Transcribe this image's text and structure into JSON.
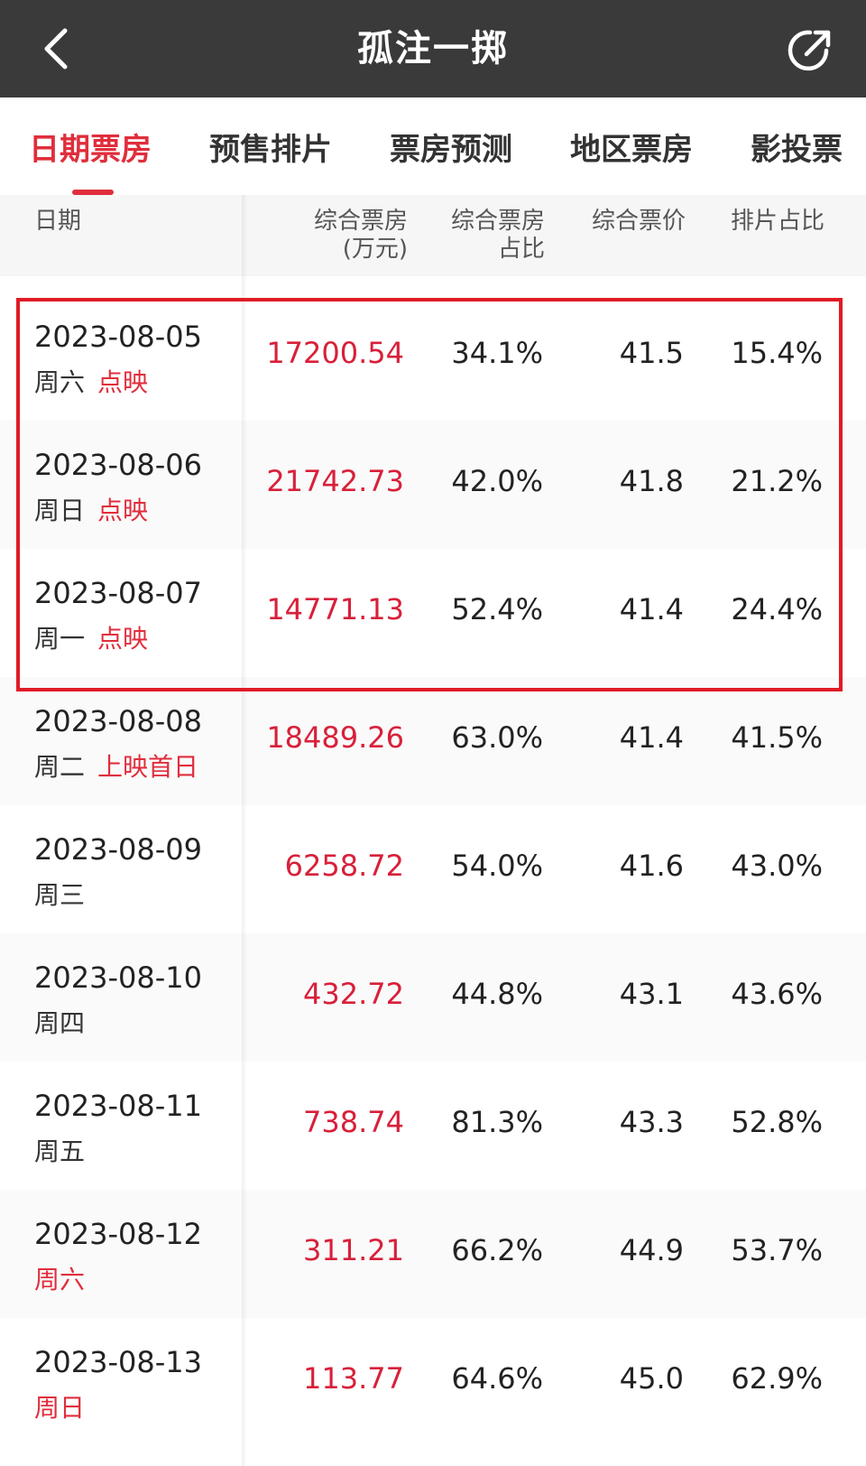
{
  "header": {
    "title": "孤注一掷"
  },
  "tabs": [
    "日期票房",
    "预售排片",
    "票房预测",
    "地区票房",
    "影投票"
  ],
  "columns": {
    "date": "日期",
    "box_office": [
      "综合票房",
      "(万元)"
    ],
    "share": [
      "综合票房",
      "占比"
    ],
    "price": "综合票价",
    "schedule": "排片占比"
  },
  "rows": [
    {
      "date": "2023-08-05",
      "weekday": "周六",
      "weekday_red": false,
      "tag": "点映",
      "box_office": "17200.54",
      "share": "34.1%",
      "price": "41.5",
      "schedule": "15.4%"
    },
    {
      "date": "2023-08-06",
      "weekday": "周日",
      "weekday_red": false,
      "tag": "点映",
      "box_office": "21742.73",
      "share": "42.0%",
      "price": "41.8",
      "schedule": "21.2%"
    },
    {
      "date": "2023-08-07",
      "weekday": "周一",
      "weekday_red": false,
      "tag": "点映",
      "box_office": "14771.13",
      "share": "52.4%",
      "price": "41.4",
      "schedule": "24.4%"
    },
    {
      "date": "2023-08-08",
      "weekday": "周二",
      "weekday_red": false,
      "tag": "上映首日",
      "box_office": "18489.26",
      "share": "63.0%",
      "price": "41.4",
      "schedule": "41.5%"
    },
    {
      "date": "2023-08-09",
      "weekday": "周三",
      "weekday_red": false,
      "tag": "",
      "box_office": "6258.72",
      "share": "54.0%",
      "price": "41.6",
      "schedule": "43.0%"
    },
    {
      "date": "2023-08-10",
      "weekday": "周四",
      "weekday_red": false,
      "tag": "",
      "box_office": "432.72",
      "share": "44.8%",
      "price": "43.1",
      "schedule": "43.6%"
    },
    {
      "date": "2023-08-11",
      "weekday": "周五",
      "weekday_red": false,
      "tag": "",
      "box_office": "738.74",
      "share": "81.3%",
      "price": "43.3",
      "schedule": "52.8%"
    },
    {
      "date": "2023-08-12",
      "weekday": "周六",
      "weekday_red": true,
      "tag": "",
      "box_office": "311.21",
      "share": "66.2%",
      "price": "44.9",
      "schedule": "53.7%"
    },
    {
      "date": "2023-08-13",
      "weekday": "周日",
      "weekday_red": true,
      "tag": "",
      "box_office": "113.77",
      "share": "64.6%",
      "price": "45.0",
      "schedule": "62.9%"
    }
  ],
  "colors": {
    "accent": "#e02e3c",
    "highlight_border": "#e01b25",
    "topbar": "#3a3a3a"
  },
  "icons": {
    "back": "chevron-left-icon",
    "share": "share-icon"
  }
}
